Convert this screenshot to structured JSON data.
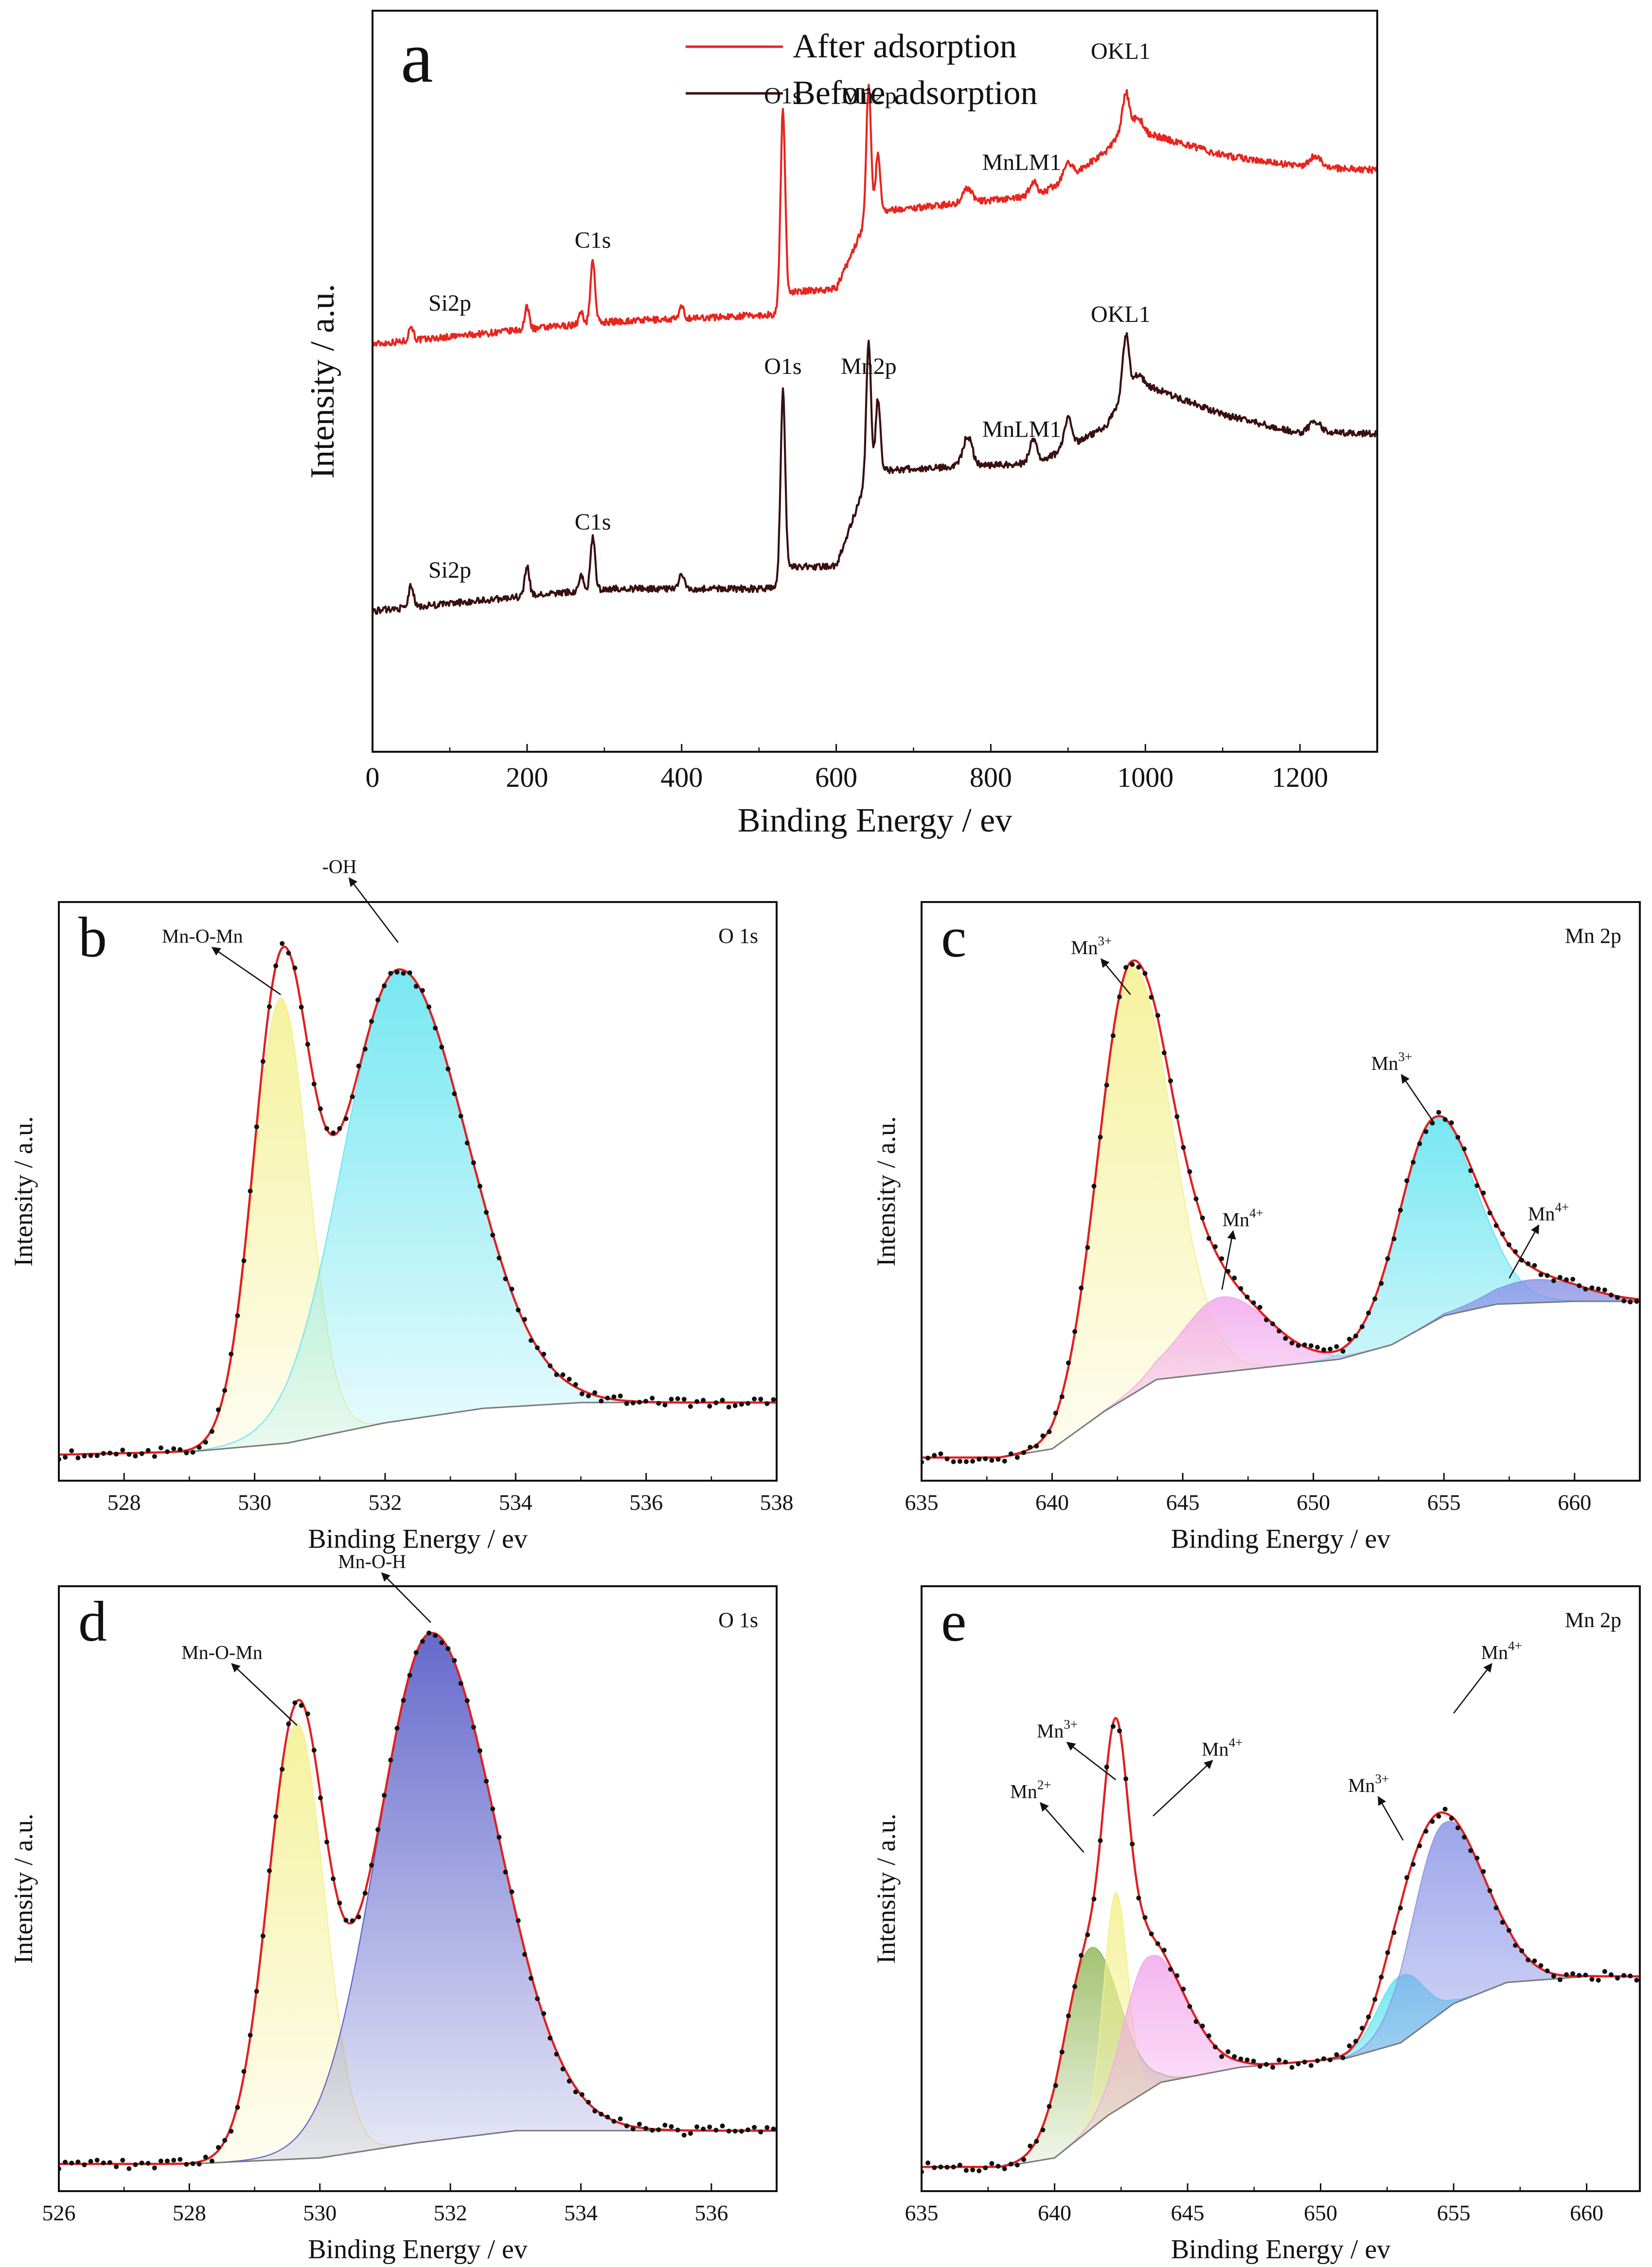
{
  "colors": {
    "after": "#e8251e",
    "before": "#3a0f0f",
    "fit": "#e02020",
    "dots": "#111111",
    "baseline": "#7a7a7a",
    "yellow": "#f3f08c",
    "cyan": "#5fe3ef",
    "pink": "#f2a9ec",
    "blue": "#8b95e6",
    "indigo": "#4a50c2",
    "green": "#93b85a"
  },
  "chart_data": [
    {
      "id": "a",
      "type": "line",
      "panel_letter": "a",
      "xlabel": "Binding Energy / ev",
      "ylabel": "Intensity / a.u.",
      "xlim": [
        0,
        1300
      ],
      "ylim": [
        0,
        100
      ],
      "x_ticks": [
        0,
        200,
        400,
        600,
        800,
        1000,
        1200
      ],
      "x_tick_labels": [
        "0",
        "200",
        "400",
        "600",
        "800",
        "1000",
        "1200"
      ],
      "legend": [
        "After adsorption",
        "Before adsorption"
      ],
      "series": [
        {
          "name": "After adsorption",
          "color_key": "after",
          "baseline": [
            [
              0,
              55.0
            ],
            [
              200,
              57.0
            ],
            [
              300,
              58.0
            ],
            [
              520,
              59.0
            ],
            [
              540,
              62.0
            ],
            [
              600,
              62.5
            ],
            [
              640,
              72.0
            ],
            [
              660,
              73.0
            ],
            [
              760,
              74.0
            ],
            [
              860,
              75.0
            ],
            [
              900,
              77.5
            ],
            [
              950,
              81.0
            ],
            [
              970,
              84.0
            ],
            [
              1000,
              83.5
            ],
            [
              1100,
              80.5
            ],
            [
              1200,
              79.0
            ],
            [
              1300,
              78.5
            ]
          ],
          "peaks": [
            [
              50,
              2.0,
              3
            ],
            [
              200,
              3.0,
              3
            ],
            [
              270,
              1.5,
              3
            ],
            [
              285,
              8.5,
              3
            ],
            [
              400,
              1.5,
              3
            ],
            [
              531,
              26.0,
              3
            ],
            [
              642,
              18.0,
              3
            ],
            [
              654,
              8.0,
              3
            ],
            [
              770,
              2.0,
              6
            ],
            [
              855,
              2.0,
              5
            ],
            [
              900,
              2.0,
              5
            ],
            [
              975,
              5.0,
              4
            ],
            [
              990,
              2.0,
              6
            ],
            [
              1220,
              1.5,
              8
            ]
          ]
        },
        {
          "name": "Before adsorption",
          "color_key": "before",
          "baseline": [
            [
              0,
              19.0
            ],
            [
              200,
              21.0
            ],
            [
              300,
              22.0
            ],
            [
              520,
              22.0
            ],
            [
              540,
              25.0
            ],
            [
              600,
              25.0
            ],
            [
              640,
              37.0
            ],
            [
              660,
              38.0
            ],
            [
              760,
              38.5
            ],
            [
              860,
              39.0
            ],
            [
              900,
              41.0
            ],
            [
              950,
              44.0
            ],
            [
              970,
              48.0
            ],
            [
              1000,
              49.5
            ],
            [
              1100,
              45.5
            ],
            [
              1200,
              43.0
            ],
            [
              1300,
              43.0
            ]
          ],
          "peaks": [
            [
              50,
              3.0,
              3
            ],
            [
              200,
              4.0,
              3
            ],
            [
              270,
              2.0,
              3
            ],
            [
              285,
              7.0,
              3
            ],
            [
              400,
              2.0,
              3
            ],
            [
              531,
              25.0,
              3
            ],
            [
              642,
              18.0,
              3
            ],
            [
              654,
              10.0,
              3
            ],
            [
              770,
              4.0,
              6
            ],
            [
              855,
              3.0,
              5
            ],
            [
              900,
              4.0,
              5
            ],
            [
              975,
              8.0,
              4
            ],
            [
              990,
              2.0,
              6
            ],
            [
              1220,
              1.5,
              8
            ]
          ]
        }
      ],
      "annotations": [
        {
          "text": "Si2p",
          "x": 100,
          "y": 59.5
        },
        {
          "text": "C1s",
          "x": 285,
          "y": 68.0
        },
        {
          "text": "O1s",
          "x": 531,
          "y": 87.5
        },
        {
          "text": "Mn2p",
          "x": 642,
          "y": 87.5
        },
        {
          "text": "MnLM1",
          "x": 840,
          "y": 78.5
        },
        {
          "text": "OKL1",
          "x": 968,
          "y": 93.5
        },
        {
          "text": "Si2p",
          "x": 100,
          "y": 23.5
        },
        {
          "text": "C1s",
          "x": 285,
          "y": 30.0
        },
        {
          "text": "O1s",
          "x": 531,
          "y": 51.0
        },
        {
          "text": "Mn2p",
          "x": 642,
          "y": 51.0
        },
        {
          "text": "MnLM1",
          "x": 840,
          "y": 42.5
        },
        {
          "text": "OKL1",
          "x": 968,
          "y": 58.0
        }
      ]
    },
    {
      "id": "b",
      "type": "area",
      "panel_letter": "b",
      "element_label": "O 1s",
      "xlabel": "Binding Energy / ev",
      "ylabel": "Intensity / a.u.",
      "xlim": [
        527,
        538
      ],
      "ylim": [
        0,
        100
      ],
      "x_ticks": [
        528,
        530,
        532,
        534,
        536,
        538
      ],
      "x_tick_labels": [
        "528",
        "530",
        "532",
        "534",
        "536",
        "538"
      ],
      "background": [
        [
          527,
          4.5
        ],
        [
          529,
          5.0
        ],
        [
          530.5,
          6.5
        ],
        [
          532,
          10.0
        ],
        [
          533.5,
          12.5
        ],
        [
          535,
          13.5
        ],
        [
          538,
          13.5
        ]
      ],
      "components": [
        {
          "name": "Mn-O-Mn",
          "center": 530.4,
          "height": 77,
          "sigma_left": 0.42,
          "sigma_right": 0.42,
          "color_key": "yellow"
        },
        {
          "name": "-OH",
          "center": 532.2,
          "height": 78,
          "sigma_left": 0.85,
          "sigma_right": 1.05,
          "color_key": "cyan"
        }
      ],
      "annotations": [
        {
          "text": "Mn-O-Mn",
          "x": 529.2,
          "y": 93,
          "arrow_to": [
            530.4,
            84
          ]
        },
        {
          "text": "-OH",
          "x": 531.3,
          "y": 105,
          "arrow_to": [
            532.2,
            93
          ]
        }
      ]
    },
    {
      "id": "c",
      "type": "area",
      "panel_letter": "c",
      "element_label": "Mn 2p",
      "xlabel": "Binding Energy / ev",
      "ylabel": "Intensity / a.u.",
      "xlim": [
        635,
        662.5
      ],
      "ylim": [
        0,
        100
      ],
      "x_ticks": [
        635,
        640,
        645,
        650,
        655,
        660
      ],
      "x_tick_labels": [
        "635",
        "640",
        "645",
        "650",
        "655",
        "660"
      ],
      "background": [
        [
          635,
          4.0
        ],
        [
          638,
          4.0
        ],
        [
          640,
          5.5
        ],
        [
          642,
          12.0
        ],
        [
          644,
          17.5
        ],
        [
          647,
          19.0
        ],
        [
          651,
          21.0
        ],
        [
          653,
          23.5
        ],
        [
          655,
          28.5
        ],
        [
          657,
          30.5
        ],
        [
          660,
          31.0
        ],
        [
          662.5,
          31.0
        ]
      ],
      "components": [
        {
          "name": "Mn3+",
          "center": 643.0,
          "height": 74,
          "sigma_left": 1.25,
          "sigma_right": 1.55,
          "color_key": "yellow"
        },
        {
          "name": "Mn4+",
          "center": 646.5,
          "height": 13,
          "sigma_left": 1.5,
          "sigma_right": 1.8,
          "color_key": "pink"
        },
        {
          "name": "Mn3+",
          "center": 654.6,
          "height": 35,
          "sigma_left": 1.35,
          "sigma_right": 1.6,
          "color_key": "cyan"
        },
        {
          "name": "Mn4+",
          "center": 658.5,
          "height": 4,
          "sigma_left": 1.6,
          "sigma_right": 1.8,
          "color_key": "blue"
        }
      ],
      "annotations": [
        {
          "text": "Mn3+",
          "base": "Mn",
          "sup": "3+",
          "x": 641.5,
          "y": 91,
          "arrow_to": [
            643.0,
            84
          ]
        },
        {
          "text": "Mn4+",
          "base": "Mn",
          "sup": "4+",
          "x": 647.3,
          "y": 44,
          "arrow_to": [
            646.5,
            33
          ]
        },
        {
          "text": "Mn3+",
          "base": "Mn",
          "sup": "3+",
          "x": 653.0,
          "y": 71,
          "arrow_to": [
            654.6,
            62
          ]
        },
        {
          "text": "Mn4+",
          "base": "Mn",
          "sup": "4+",
          "x": 659.0,
          "y": 45,
          "arrow_to": [
            657.5,
            35
          ]
        }
      ]
    },
    {
      "id": "d",
      "type": "area",
      "panel_letter": "d",
      "element_label": "O 1s",
      "xlabel": "Binding Energy / ev",
      "ylabel": "Intensity / a.u.",
      "xlim": [
        526,
        537
      ],
      "ylim": [
        0,
        100
      ],
      "x_ticks": [
        526,
        528,
        530,
        532,
        534,
        536
      ],
      "x_tick_labels": [
        "526",
        "528",
        "530",
        "532",
        "534",
        "536"
      ],
      "background": [
        [
          526,
          4.5
        ],
        [
          528,
          4.5
        ],
        [
          530,
          5.5
        ],
        [
          531.5,
          8.0
        ],
        [
          533,
          10.0
        ],
        [
          537,
          10.0
        ]
      ],
      "components": [
        {
          "name": "Mn-O-Mn",
          "center": 529.65,
          "height": 72,
          "sigma_left": 0.45,
          "sigma_right": 0.42,
          "color_key": "yellow"
        },
        {
          "name": "Mn-O-H",
          "center": 531.7,
          "height": 84,
          "sigma_left": 0.82,
          "sigma_right": 1.0,
          "color_key": "indigo"
        }
      ],
      "annotations": [
        {
          "text": "Mn-O-Mn",
          "x": 528.5,
          "y": 88,
          "arrow_to": [
            529.65,
            77
          ]
        },
        {
          "text": "Mn-O-H",
          "x": 530.8,
          "y": 103,
          "arrow_to": [
            531.7,
            94
          ]
        }
      ]
    },
    {
      "id": "e",
      "type": "area",
      "panel_letter": "e",
      "element_label": "Mn 2p",
      "xlabel": "Binding Energy / ev",
      "ylabel": "Intensity / a.u.",
      "xlim": [
        635,
        662
      ],
      "ylim": [
        0,
        100
      ],
      "x_ticks": [
        635,
        640,
        645,
        650,
        655,
        660
      ],
      "x_tick_labels": [
        "635",
        "640",
        "645",
        "650",
        "655",
        "660"
      ],
      "background": [
        [
          635,
          4.0
        ],
        [
          638,
          4.0
        ],
        [
          640,
          5.5
        ],
        [
          642,
          12.5
        ],
        [
          644,
          18.0
        ],
        [
          647,
          20.5
        ],
        [
          651,
          22.0
        ],
        [
          653,
          24.5
        ],
        [
          655,
          31.0
        ],
        [
          657,
          34.5
        ],
        [
          660,
          35.5
        ],
        [
          662,
          35.5
        ]
      ],
      "components": [
        {
          "name": "Mn2+",
          "center": 641.3,
          "height": 30,
          "sigma_left": 0.95,
          "sigma_right": 1.1,
          "color_key": "green"
        },
        {
          "name": "Mn3+",
          "center": 642.3,
          "height": 36,
          "sigma_left": 0.45,
          "sigma_right": 0.45,
          "color_key": "yellow"
        },
        {
          "name": "Mn4+",
          "center": 643.5,
          "height": 22,
          "sigma_left": 0.9,
          "sigma_right": 1.4,
          "color_key": "pink"
        },
        {
          "name": "Mn3+",
          "center": 653.0,
          "height": 11,
          "sigma_left": 0.85,
          "sigma_right": 0.85,
          "color_key": "cyan"
        },
        {
          "name": "Mn4+",
          "center": 654.6,
          "height": 31,
          "sigma_left": 1.15,
          "sigma_right": 1.55,
          "color_key": "blue"
        }
      ],
      "annotations": [
        {
          "text": "Mn2+",
          "base": "Mn",
          "sup": "2+",
          "x": 639.1,
          "y": 65,
          "arrow_to": [
            641.1,
            56
          ]
        },
        {
          "text": "Mn3+",
          "base": "Mn",
          "sup": "3+",
          "x": 640.1,
          "y": 75,
          "arrow_to": [
            642.3,
            68
          ]
        },
        {
          "text": "Mn4+",
          "base": "Mn",
          "sup": "4+",
          "x": 646.3,
          "y": 72,
          "arrow_to": [
            643.7,
            62
          ]
        },
        {
          "text": "Mn3+",
          "base": "Mn",
          "sup": "3+",
          "x": 651.8,
          "y": 66,
          "arrow_to": [
            653.1,
            58
          ]
        },
        {
          "text": "Mn4+",
          "base": "Mn",
          "sup": "4+",
          "x": 656.8,
          "y": 88,
          "arrow_to": [
            655.0,
            79
          ]
        }
      ]
    }
  ]
}
